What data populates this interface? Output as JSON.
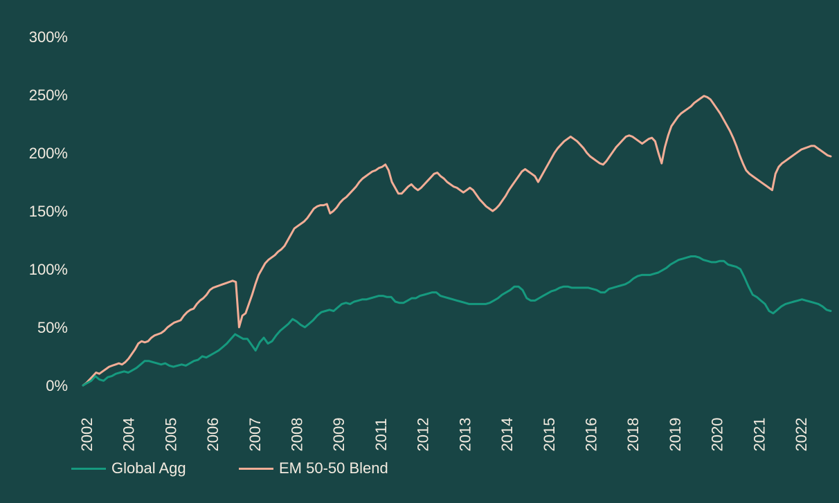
{
  "chart_data": {
    "type": "line",
    "title": "",
    "xlabel": "",
    "ylabel": "",
    "ylim": [
      0,
      300
    ],
    "ytick_labels": [
      "0%",
      "50%",
      "100%",
      "150%",
      "200%",
      "250%",
      "300%"
    ],
    "xtick_labels": [
      "2002",
      "2004",
      "2005",
      "2006",
      "2007",
      "2008",
      "2009",
      "2011",
      "2012",
      "2013",
      "2014",
      "2015",
      "2016",
      "2018",
      "2019",
      "2020",
      "2021",
      "2022"
    ],
    "series": [
      {
        "name": "Global Agg",
        "color": "#169a7f",
        "values": [
          0,
          2,
          4,
          8,
          5,
          4,
          7,
          8,
          10,
          11,
          12,
          11,
          13,
          15,
          18,
          21,
          21,
          20,
          19,
          18,
          19,
          17,
          16,
          17,
          18,
          17,
          19,
          21,
          22,
          25,
          24,
          26,
          28,
          30,
          33,
          36,
          40,
          44,
          42,
          40,
          40,
          35,
          30,
          37,
          41,
          36,
          38,
          43,
          47,
          50,
          53,
          57,
          55,
          52,
          50,
          53,
          56,
          60,
          63,
          64,
          65,
          64,
          67,
          70,
          71,
          70,
          72,
          73,
          74,
          74,
          75,
          76,
          77,
          77,
          76,
          76,
          72,
          71,
          71,
          73,
          75,
          75,
          77,
          78,
          79,
          80,
          80,
          77,
          76,
          75,
          74,
          73,
          72,
          71,
          70,
          70,
          70,
          70,
          70,
          71,
          73,
          75,
          78,
          80,
          82,
          85,
          85,
          82,
          75,
          73,
          73,
          75,
          77,
          79,
          81,
          82,
          84,
          85,
          85,
          84,
          84,
          84,
          84,
          84,
          83,
          82,
          80,
          80,
          83,
          84,
          85,
          86,
          87,
          89,
          92,
          94,
          95,
          95,
          95,
          96,
          97,
          99,
          101,
          104,
          106,
          108,
          109,
          110,
          111,
          111,
          110,
          108,
          107,
          106,
          106,
          107,
          107,
          104,
          103,
          102,
          100,
          93,
          85,
          78,
          76,
          73,
          70,
          64,
          62,
          65,
          68,
          70,
          71,
          72,
          73,
          74,
          73,
          72,
          71,
          70,
          68,
          65,
          64
        ]
      },
      {
        "name": "EM 50-50 Blend",
        "color": "#f2ad96",
        "values": [
          0,
          2,
          5,
          8,
          11,
          10,
          12,
          14,
          16,
          17,
          18,
          19,
          18,
          20,
          23,
          27,
          31,
          36,
          38,
          37,
          38,
          41,
          43,
          44,
          45,
          47,
          50,
          52,
          54,
          55,
          56,
          60,
          63,
          65,
          66,
          70,
          73,
          75,
          78,
          82,
          84,
          85,
          86,
          87,
          88,
          89,
          90,
          89,
          50,
          60,
          62,
          70,
          78,
          87,
          95,
          100,
          105,
          108,
          110,
          112,
          115,
          117,
          120,
          125,
          130,
          135,
          137,
          139,
          141,
          144,
          148,
          152,
          154,
          155,
          155,
          156,
          148,
          150,
          153,
          157,
          160,
          162,
          165,
          168,
          171,
          175,
          178,
          180,
          182,
          184,
          185,
          187,
          188,
          190,
          185,
          175,
          170,
          165,
          165,
          168,
          171,
          173,
          170,
          168,
          170,
          173,
          176,
          179,
          182,
          183,
          180,
          178,
          175,
          173,
          171,
          170,
          168,
          166,
          168,
          170,
          168,
          164,
          160,
          157,
          154,
          152,
          150,
          152,
          155,
          159,
          163,
          168,
          172,
          176,
          180,
          184,
          186,
          184,
          182,
          180,
          175,
          180,
          185,
          190,
          195,
          200,
          204,
          207,
          210,
          212,
          214,
          212,
          210,
          207,
          204,
          200,
          197,
          195,
          193,
          191,
          190,
          193,
          197,
          201,
          205,
          208,
          211,
          214,
          215,
          214,
          212,
          210,
          208,
          210,
          212,
          213,
          210,
          200,
          191,
          205,
          215,
          223,
          227,
          231,
          234,
          236,
          238,
          240,
          243,
          245,
          247,
          249,
          248,
          246,
          242,
          238,
          234,
          229,
          224,
          219,
          213,
          206,
          198,
          191,
          185,
          182,
          180,
          178,
          176,
          174,
          172,
          170,
          168,
          182,
          188,
          191,
          193,
          195,
          197,
          199,
          201,
          203,
          204,
          205,
          206,
          206,
          204,
          202,
          200,
          198,
          197
        ]
      }
    ]
  }
}
